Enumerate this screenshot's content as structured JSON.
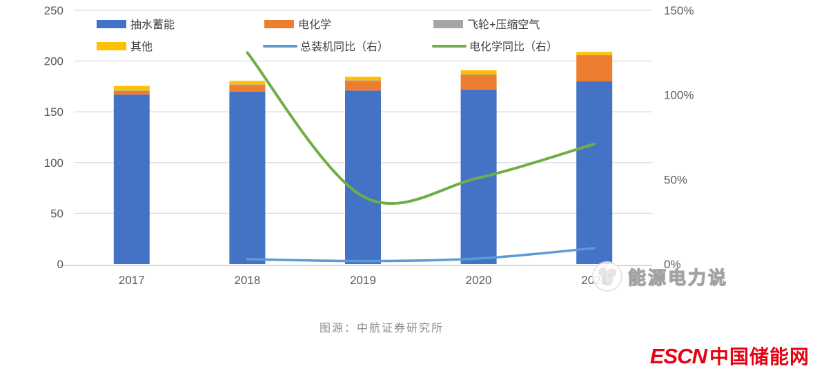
{
  "chart_data": {
    "type": "bar",
    "subtype": "stacked-bar-with-lines-combo",
    "title": "",
    "categories": [
      "2017",
      "2018",
      "2019",
      "2020",
      "2021"
    ],
    "left_axis": {
      "ticks": [
        0,
        50,
        100,
        150,
        200,
        250
      ],
      "tick_labels": [
        "0",
        "50",
        "100",
        "150",
        "200",
        "250"
      ],
      "min": 0,
      "max": 250,
      "grid": true
    },
    "right_axis": {
      "ticks": [
        0,
        50,
        100,
        150
      ],
      "tick_labels": [
        "0%",
        "50%",
        "100%",
        "150%"
      ],
      "min": 0,
      "max": 150,
      "grid": false
    },
    "bar_series": [
      {
        "name": "抽水蓄能",
        "color": "#4472C4",
        "values": [
          167,
          170,
          171,
          172,
          180
        ]
      },
      {
        "name": "电化学",
        "color": "#ED7D31",
        "values": [
          3.5,
          6.5,
          9.5,
          14.5,
          25.5
        ]
      },
      {
        "name": "飞轮+压缩空气",
        "color": "#A5A5A5",
        "values": [
          0.5,
          0.5,
          0.5,
          0.5,
          0.5
        ]
      },
      {
        "name": "其他",
        "color": "#FFC000",
        "values": [
          4.5,
          3.5,
          3.5,
          4,
          3
        ]
      }
    ],
    "line_series": [
      {
        "name": "总装机同比（右）",
        "color": "#5B9BD5",
        "axis": "right",
        "x": [
          "2018",
          "2019",
          "2020",
          "2021"
        ],
        "values": [
          2.9,
          1.8,
          3.3,
          9.4
        ]
      },
      {
        "name": "电化学同比（右）",
        "color": "#70AD47",
        "axis": "right",
        "x": [
          "2018",
          "2019",
          "2020",
          "2021"
        ],
        "values": [
          125,
          40,
          51,
          71
        ]
      }
    ],
    "legend": [
      {
        "label": "抽水蓄能",
        "swatch": "bar",
        "color": "#4472C4"
      },
      {
        "label": "电化学",
        "swatch": "bar",
        "color": "#ED7D31"
      },
      {
        "label": "飞轮+压缩空气",
        "swatch": "bar",
        "color": "#A5A5A5"
      },
      {
        "label": "其他",
        "swatch": "bar",
        "color": "#FFC000"
      },
      {
        "label": "总装机同比（右）",
        "swatch": "line",
        "color": "#5B9BD5"
      },
      {
        "label": "电化学同比（右）",
        "swatch": "line",
        "color": "#70AD47"
      }
    ],
    "legend_position": "top-inside-two-rows"
  },
  "footer": {
    "source": "图源：中航证券研究所"
  },
  "watermark": {
    "text": "能源电力说"
  },
  "brand": {
    "name_en": "ESCN",
    "name_cn": "中国储能网",
    "color": "#E60012"
  }
}
